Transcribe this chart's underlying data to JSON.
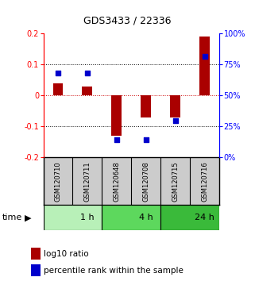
{
  "title": "GDS3433 / 22336",
  "samples": [
    "GSM120710",
    "GSM120711",
    "GSM120648",
    "GSM120708",
    "GSM120715",
    "GSM120716"
  ],
  "log10_ratio": [
    0.04,
    0.03,
    -0.13,
    -0.072,
    -0.072,
    0.19
  ],
  "percentile": [
    68,
    68,
    14,
    14,
    30,
    82
  ],
  "groups": [
    {
      "label": "1 h",
      "start": 0,
      "end": 2,
      "color": "#b8f0b8"
    },
    {
      "label": "4 h",
      "start": 2,
      "end": 4,
      "color": "#5dd85d"
    },
    {
      "label": "24 h",
      "start": 4,
      "end": 6,
      "color": "#3aba3a"
    }
  ],
  "ylim": [
    -0.2,
    0.2
  ],
  "yticks_left": [
    -0.2,
    -0.1,
    0.0,
    0.1,
    0.2
  ],
  "yticks_right": [
    0,
    25,
    50,
    75,
    100
  ],
  "bar_color": "#aa0000",
  "dot_color": "#0000cc",
  "zero_line_color": "#cc0000",
  "grid_color": "#000000",
  "sample_box_color": "#cccccc",
  "time_label": "time",
  "legend_bar_label": "log10 ratio",
  "legend_dot_label": "percentile rank within the sample",
  "bar_width": 0.35,
  "dot_size": 25
}
